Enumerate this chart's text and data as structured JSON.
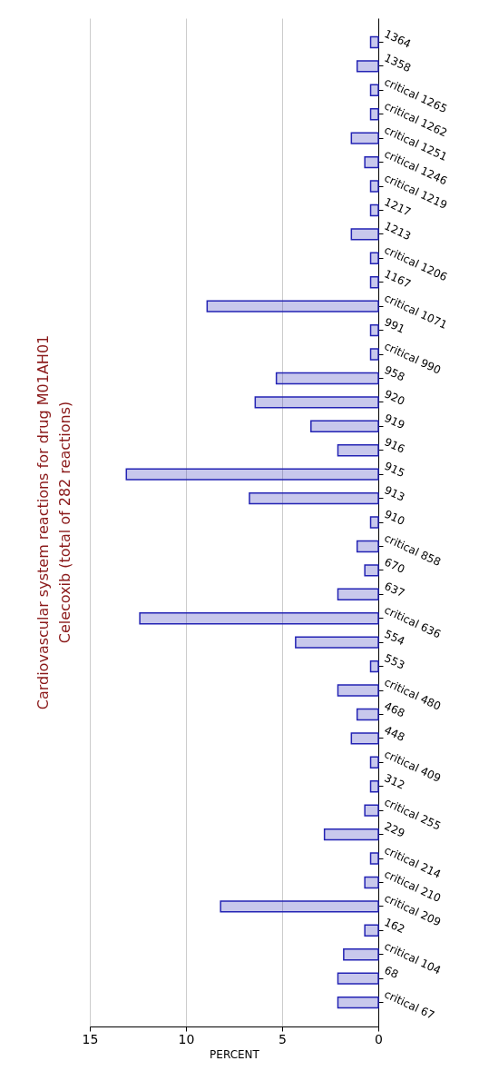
{
  "chart_data": {
    "type": "bar",
    "orientation": "horizontal",
    "title": "Cardiovascular system reactions for drug M01AH01",
    "subtitle": "Celecoxib (total of 282 reactions)",
    "xlabel": "PERCENT",
    "categories": [
      "1364",
      "1358",
      "critical 1265",
      "critical 1262",
      "critical 1251",
      "critical 1246",
      "critical 1219",
      "1217",
      "1213",
      "critical 1206",
      "1167",
      "critical 1071",
      "991",
      "critical 990",
      "958",
      "920",
      "919",
      "916",
      "915",
      "913",
      "910",
      "critical 858",
      "670",
      "637",
      "critical 636",
      "554",
      "553",
      "critical 480",
      "468",
      "448",
      "critical 409",
      "312",
      "critical 255",
      "229",
      "critical 214",
      "critical 210",
      "critical 209",
      "162",
      "critical 104",
      "68",
      "critical 67"
    ],
    "values": [
      0.4,
      1.1,
      0.4,
      0.4,
      1.4,
      0.7,
      0.4,
      0.4,
      1.4,
      0.4,
      0.4,
      8.9,
      0.4,
      0.4,
      5.3,
      6.4,
      3.5,
      2.1,
      13.1,
      6.7,
      0.4,
      1.1,
      0.7,
      2.1,
      12.4,
      4.3,
      0.4,
      2.1,
      1.1,
      1.4,
      0.4,
      0.4,
      0.7,
      2.8,
      0.4,
      0.7,
      8.2,
      0.7,
      1.8,
      2.1,
      2.1
    ],
    "color": "#2323b4",
    "xlim": [
      15,
      0
    ],
    "xticks": [
      0,
      5,
      10,
      15
    ],
    "grid": "x"
  }
}
